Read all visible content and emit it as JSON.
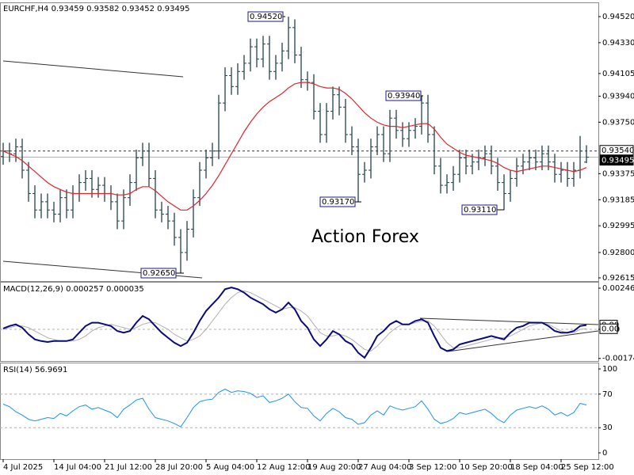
{
  "chart_data": [
    {
      "type": "ohlc",
      "title": "EURCHF,H4 0.93459 0.93582 0.93452 0.93495",
      "watermark": "Action Forex",
      "color": "#24404a",
      "categories": [
        "4 Jul 2025",
        null,
        null,
        null,
        null,
        null,
        null,
        null,
        "14 Jul 04:00",
        null,
        null,
        null,
        null,
        null,
        null,
        null,
        "21 Jul 12:00",
        null,
        null,
        null,
        null,
        null,
        null,
        null,
        "28 Jul 20:00",
        null,
        null,
        null,
        null,
        null,
        null,
        null,
        "5 Aug 04:00",
        null,
        null,
        null,
        null,
        null,
        null,
        null,
        "12 Aug 12:00",
        null,
        null,
        null,
        null,
        null,
        null,
        null,
        "19 Aug 20:00",
        null,
        null,
        null,
        null,
        null,
        null,
        null,
        "27 Aug 04:00",
        null,
        null,
        null,
        null,
        null,
        null,
        null,
        "3 Sep 12:00",
        null,
        null,
        null,
        null,
        null,
        null,
        null,
        "10 Sep 20:00",
        null,
        null,
        null,
        null,
        null,
        null,
        null,
        "18 Sep 04:00",
        null,
        null,
        null,
        null,
        null,
        null,
        null,
        "25 Sep 12:00",
        null,
        null,
        null,
        null
      ],
      "open": [
        0.935,
        0.9354,
        0.9352,
        0.9357,
        0.934,
        0.9323,
        0.9311,
        0.9317,
        0.9311,
        0.9308,
        0.932,
        0.9311,
        0.9323,
        0.9331,
        0.9334,
        0.9326,
        0.9329,
        0.9323,
        0.9317,
        0.9303,
        0.932,
        0.9331,
        0.9349,
        0.9354,
        0.9334,
        0.9311,
        0.9308,
        0.9303,
        0.9291,
        0.928,
        0.9297,
        0.932,
        0.934,
        0.9349,
        0.9354,
        0.9389,
        0.9409,
        0.9401,
        0.9412,
        0.9418,
        0.943,
        0.9421,
        0.9432,
        0.9412,
        0.9418,
        0.9427,
        0.9444,
        0.9424,
        0.9406,
        0.9404,
        0.9383,
        0.9366,
        0.9383,
        0.9395,
        0.9386,
        0.9366,
        0.9357,
        0.9337,
        0.934,
        0.9357,
        0.9366,
        0.9352,
        0.9378,
        0.9369,
        0.9363,
        0.9369,
        0.9372,
        0.9389,
        0.9366,
        0.9343,
        0.9329,
        0.9331,
        0.9337,
        0.9349,
        0.9343,
        0.9346,
        0.9349,
        0.9352,
        0.9343,
        0.9331,
        0.9323,
        0.9334,
        0.9343,
        0.9346,
        0.9349,
        0.9346,
        0.9352,
        0.9346,
        0.9337,
        0.934,
        0.9334,
        0.934,
        0.93459
      ],
      "high": [
        0.936,
        0.936,
        0.9363,
        0.9363,
        0.9346,
        0.9329,
        0.9323,
        0.9323,
        0.9317,
        0.9326,
        0.9326,
        0.9329,
        0.9337,
        0.934,
        0.934,
        0.9335,
        0.9335,
        0.9329,
        0.9323,
        0.9326,
        0.9337,
        0.9355,
        0.936,
        0.936,
        0.934,
        0.9317,
        0.9314,
        0.9309,
        0.9297,
        0.9303,
        0.9326,
        0.9346,
        0.9355,
        0.936,
        0.9395,
        0.9415,
        0.9415,
        0.9418,
        0.9424,
        0.9436,
        0.9436,
        0.9438,
        0.9438,
        0.9424,
        0.9433,
        0.9452,
        0.945,
        0.943,
        0.9412,
        0.941,
        0.9389,
        0.9389,
        0.9401,
        0.9401,
        0.9392,
        0.9372,
        0.9363,
        0.9346,
        0.9363,
        0.9372,
        0.9372,
        0.9384,
        0.9384,
        0.9375,
        0.9375,
        0.9378,
        0.9394,
        0.9395,
        0.9372,
        0.9349,
        0.9337,
        0.9343,
        0.9355,
        0.9355,
        0.9352,
        0.9355,
        0.9358,
        0.9358,
        0.9349,
        0.9337,
        0.934,
        0.9349,
        0.9352,
        0.9355,
        0.9355,
        0.9358,
        0.9358,
        0.9352,
        0.9346,
        0.9346,
        0.9346,
        0.9365,
        0.93582
      ],
      "low": [
        0.9344,
        0.9346,
        0.9346,
        0.9334,
        0.9317,
        0.9305,
        0.9305,
        0.9305,
        0.9302,
        0.9302,
        0.9305,
        0.9305,
        0.9317,
        0.9325,
        0.932,
        0.932,
        0.9317,
        0.9311,
        0.9297,
        0.9297,
        0.9314,
        0.9325,
        0.9343,
        0.9328,
        0.9305,
        0.9302,
        0.9297,
        0.9285,
        0.9265,
        0.9274,
        0.9291,
        0.9314,
        0.9334,
        0.9343,
        0.9348,
        0.9383,
        0.9395,
        0.9395,
        0.9406,
        0.9412,
        0.9415,
        0.9415,
        0.9406,
        0.9406,
        0.9412,
        0.9421,
        0.9418,
        0.94,
        0.9398,
        0.9377,
        0.936,
        0.936,
        0.9377,
        0.938,
        0.936,
        0.9351,
        0.9317,
        0.9331,
        0.9334,
        0.9351,
        0.9346,
        0.9346,
        0.9363,
        0.9357,
        0.9357,
        0.9363,
        0.9366,
        0.936,
        0.9337,
        0.9323,
        0.9323,
        0.9325,
        0.9331,
        0.9337,
        0.9337,
        0.934,
        0.9343,
        0.9337,
        0.9325,
        0.9311,
        0.9317,
        0.9328,
        0.9337,
        0.934,
        0.934,
        0.934,
        0.934,
        0.9331,
        0.9331,
        0.9328,
        0.9328,
        0.9334,
        0.93452
      ],
      "close": [
        0.9354,
        0.9352,
        0.9357,
        0.934,
        0.9323,
        0.9311,
        0.9317,
        0.9311,
        0.9308,
        0.932,
        0.9311,
        0.9323,
        0.9331,
        0.9334,
        0.9326,
        0.9329,
        0.9323,
        0.9317,
        0.9303,
        0.932,
        0.9331,
        0.9349,
        0.9354,
        0.9334,
        0.9311,
        0.9308,
        0.9303,
        0.9291,
        0.928,
        0.9297,
        0.932,
        0.934,
        0.9349,
        0.9354,
        0.9389,
        0.9409,
        0.9401,
        0.9412,
        0.9418,
        0.943,
        0.9421,
        0.9432,
        0.9412,
        0.9418,
        0.9427,
        0.9444,
        0.9424,
        0.9406,
        0.9404,
        0.9383,
        0.9366,
        0.9383,
        0.9395,
        0.9386,
        0.9366,
        0.9357,
        0.9337,
        0.934,
        0.9357,
        0.9366,
        0.9352,
        0.9378,
        0.9369,
        0.9363,
        0.9369,
        0.9372,
        0.9389,
        0.9366,
        0.9343,
        0.9329,
        0.9331,
        0.9337,
        0.9349,
        0.9343,
        0.9346,
        0.9349,
        0.9352,
        0.9343,
        0.9331,
        0.9323,
        0.9334,
        0.9343,
        0.9346,
        0.9349,
        0.9346,
        0.9352,
        0.9346,
        0.9337,
        0.934,
        0.9334,
        0.934,
        0.9354,
        0.93495
      ],
      "moving_average": {
        "color": "#e3242b",
        "values": [
          0.9354,
          0.9352,
          0.935,
          0.9347,
          0.9343,
          0.9339,
          0.9335,
          0.9331,
          0.9328,
          0.9326,
          0.9324,
          0.9323,
          0.9323,
          0.9323,
          0.9323,
          0.9323,
          0.9323,
          0.9323,
          0.9322,
          0.9322,
          0.9323,
          0.9326,
          0.9328,
          0.9328,
          0.9325,
          0.9321,
          0.9317,
          0.9314,
          0.9311,
          0.9311,
          0.9314,
          0.9318,
          0.9323,
          0.9329,
          0.9336,
          0.9344,
          0.9352,
          0.936,
          0.9368,
          0.9375,
          0.9381,
          0.9386,
          0.939,
          0.9393,
          0.9396,
          0.94,
          0.9403,
          0.9404,
          0.9404,
          0.9403,
          0.9401,
          0.94,
          0.94,
          0.9399,
          0.9396,
          0.9392,
          0.9387,
          0.9382,
          0.9378,
          0.9375,
          0.9373,
          0.9372,
          0.9372,
          0.9371,
          0.9372,
          0.9373,
          0.9374,
          0.9374,
          0.937,
          0.9364,
          0.9359,
          0.9356,
          0.9353,
          0.9351,
          0.935,
          0.9349,
          0.9348,
          0.9347,
          0.9345,
          0.9342,
          0.934,
          0.9339,
          0.934,
          0.9341,
          0.9342,
          0.9343,
          0.9343,
          0.9342,
          0.9341,
          0.934,
          0.9339,
          0.934,
          0.9342
        ]
      },
      "annotations": [
        "0.94520",
        "0.93940",
        "0.93170",
        "0.93110",
        "0.92650"
      ],
      "price_markers": [
        {
          "value": 0.9354,
          "label": "0.93540"
        },
        {
          "value": 0.93495,
          "label": "0.93495"
        }
      ],
      "ylim": [
        0.92592,
        0.94618
      ],
      "yticks": [
        {
          "value": 0.9452,
          "label": "0.94520"
        },
        {
          "value": 0.9433,
          "label": "0.94330"
        },
        {
          "value": 0.94105,
          "label": "0.94105"
        },
        {
          "value": 0.9394,
          "label": "0.93940"
        },
        {
          "value": 0.9375,
          "label": "0.93750"
        },
        {
          "value": 0.93375,
          "label": "0.93375"
        },
        {
          "value": 0.93185,
          "label": "0.93185"
        },
        {
          "value": 0.92995,
          "label": "0.92995"
        },
        {
          "value": 0.928,
          "label": "0.92800"
        },
        {
          "value": 0.92615,
          "label": "0.92615"
        }
      ]
    },
    {
      "type": "line",
      "title": "MACD(12,26,9) 0.000257 0.000035",
      "series": [
        {
          "name": "MACD",
          "color": "#0a0a80",
          "values": [
            5e-05,
            0.0002,
            0.0003,
            0.0001,
            -0.0003,
            -0.0006,
            -0.0007,
            -0.00076,
            -0.0007,
            -0.0007,
            -0.0007,
            -0.0006,
            -0.0002,
            0.0002,
            0.0004,
            0.0004,
            0.0003,
            0.0002,
            -0.0001,
            -0.0002,
            -0.0001,
            0.0004,
            0.0008,
            0.0006,
            0.0002,
            -0.0002,
            -0.0005,
            -0.0008,
            -0.001,
            -0.0008,
            -0.0002,
            0.0005,
            0.0011,
            0.0015,
            0.0019,
            0.0024,
            0.0025,
            0.0024,
            0.0022,
            0.0019,
            0.0017,
            0.0015,
            0.0012,
            0.001,
            0.0012,
            0.0016,
            0.0012,
            0.0005,
            0.0001,
            -0.0006,
            -0.001,
            -0.0006,
            -0.0001,
            -0.0003,
            -0.0007,
            -0.0009,
            -0.0014,
            -0.0017,
            -0.0011,
            -0.0004,
            -0.0001,
            0.0003,
            0.0005,
            0.0003,
            0.0003,
            0.0005,
            0.0006,
            0.0004,
            -0.0004,
            -0.0011,
            -0.0013,
            -0.0012,
            -0.0009,
            -0.0008,
            -0.0007,
            -0.0006,
            -0.0005,
            -0.0004,
            -0.0005,
            -0.0006,
            -0.0002,
            0.0001,
            0.0002,
            0.0004,
            0.0004,
            0.0004,
            0.0002,
            -0.0001,
            -0.0002,
            -0.0002,
            -0.0001,
            0.0002,
            0.000257
          ]
        },
        {
          "name": "Signal",
          "color": "#b0b0b0",
          "values": [
            0,
            0.0001,
            0.0002,
            0.0002,
            0.0001,
            -0.0001,
            -0.0003,
            -0.0005,
            -0.0006,
            -0.0007,
            -0.0007,
            -0.0007,
            -0.0006,
            -0.0004,
            -0.0001,
            0.0001,
            0.0002,
            0.0003,
            0.0002,
            0.0001,
            0,
            0.0001,
            0.0003,
            0.0004,
            0.0004,
            0.0002,
            0,
            -0.0003,
            -0.0005,
            -0.0007,
            -0.0006,
            -0.0004,
            0,
            0.0005,
            0.001,
            0.0015,
            0.0019,
            0.0022,
            0.0023,
            0.0022,
            0.002,
            0.0018,
            0.0016,
            0.0014,
            0.0012,
            0.0013,
            0.0013,
            0.0011,
            0.0008,
            0.0003,
            -0.0002,
            -0.0004,
            -0.0004,
            -0.0003,
            -0.0004,
            -0.0006,
            -0.0009,
            -0.0012,
            -0.0013,
            -0.001,
            -0.0006,
            -0.0002,
            0.0001,
            0.0003,
            0.0003,
            0.0004,
            0.0005,
            0.0005,
            0.0002,
            -0.0003,
            -0.0008,
            -0.0011,
            -0.0011,
            -0.001,
            -0.0009,
            -0.0008,
            -0.0007,
            -0.0006,
            -0.0005,
            -0.0005,
            -0.0004,
            -0.0002,
            0,
            0.0002,
            0.0003,
            0.0004,
            0.0003,
            0.0001,
            -0.0001,
            -0.0002,
            -0.0002,
            0,
            3.5e-05
          ]
        }
      ],
      "marker_labels": [
        "0.00",
        "0.00"
      ],
      "ylim": [
        -0.001895,
        0.002795
      ],
      "yticks": [
        0.002463,
        {
          "value": 0,
          "label": "0.00"
        },
        -0.00174
      ]
    },
    {
      "type": "line",
      "title": "RSI(14) 56.9691",
      "series": [
        {
          "name": "RSI",
          "color": "#1e90ff",
          "values": [
            58,
            55,
            49,
            45,
            40,
            38,
            40,
            42,
            41,
            47,
            44,
            50,
            55,
            57,
            52,
            54,
            51,
            48,
            42,
            52,
            57,
            63,
            65,
            52,
            42,
            40,
            38,
            35,
            31,
            42,
            54,
            61,
            63,
            64,
            72,
            76,
            72,
            74,
            73,
            71,
            66,
            68,
            60,
            62,
            65,
            70,
            61,
            54,
            53,
            44,
            38,
            47,
            53,
            49,
            42,
            40,
            34,
            36,
            45,
            50,
            45,
            56,
            53,
            51,
            53,
            55,
            62,
            52,
            40,
            35,
            37,
            41,
            48,
            46,
            48,
            50,
            52,
            47,
            40,
            36,
            45,
            51,
            53,
            55,
            53,
            56,
            52,
            45,
            48,
            44,
            48,
            59,
            56.9691
          ]
        }
      ],
      "levels": [
        70,
        30
      ],
      "ylim": [
        -7.5,
        106.6
      ],
      "yticks": [
        100,
        70,
        30,
        0
      ]
    }
  ]
}
